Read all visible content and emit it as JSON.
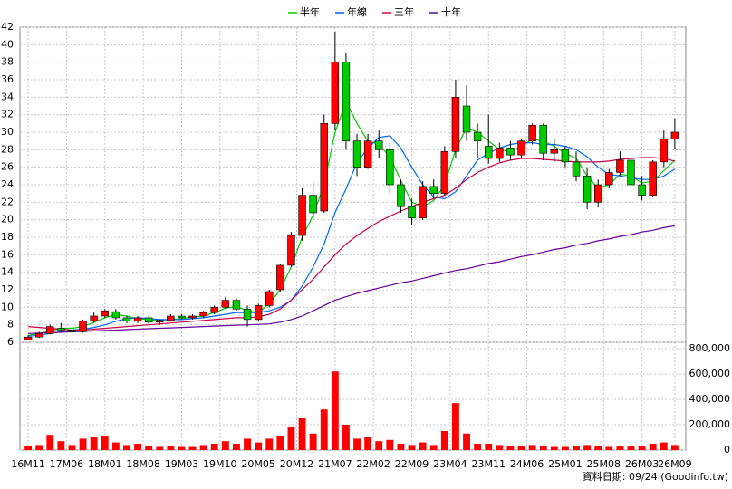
{
  "chart_data": {
    "type": "candlestick",
    "x": [
      0,
      2,
      4,
      6,
      8,
      10,
      12,
      14,
      16,
      18,
      20,
      22,
      24,
      26,
      28,
      30,
      32,
      34,
      36,
      38,
      40,
      42,
      44,
      46,
      48,
      50,
      52,
      54,
      56,
      58,
      60,
      62,
      64,
      66,
      68,
      70,
      72,
      74,
      76,
      78,
      80,
      82,
      84,
      86,
      88,
      90,
      92,
      94,
      96,
      98,
      100,
      102,
      104,
      106,
      108,
      110,
      112,
      114,
      116,
      118
    ],
    "open": [
      6.3,
      6.6,
      7.0,
      7.6,
      7.4,
      7.2,
      8.4,
      9.0,
      9.5,
      8.8,
      8.4,
      8.8,
      8.3,
      8.5,
      9.0,
      8.8,
      9.0,
      9.4,
      10.0,
      10.8,
      9.8,
      8.6,
      10.2,
      12.0,
      14.8,
      18.2,
      22.8,
      21.0,
      31.0,
      38.0,
      29.0,
      26.0,
      29.0,
      28.0,
      24.0,
      21.5,
      20.2,
      23.8,
      23.0,
      27.8,
      33.0,
      30.0,
      28.4,
      27.0,
      28.2,
      27.4,
      29.0,
      30.8,
      27.6,
      28.0,
      26.6,
      25.0,
      22.0,
      24.0,
      25.4,
      26.8,
      24.0,
      22.8,
      26.6,
      29.2
    ],
    "high": [
      6.8,
      7.2,
      8.0,
      8.2,
      7.8,
      8.6,
      9.4,
      9.8,
      9.8,
      9.0,
      9.0,
      9.0,
      8.6,
      9.2,
      9.2,
      9.2,
      9.6,
      10.2,
      11.2,
      11.0,
      10.2,
      10.4,
      12.0,
      15.0,
      18.6,
      23.6,
      24.4,
      32.0,
      41.5,
      39.0,
      29.8,
      29.8,
      30.2,
      28.8,
      24.6,
      22.4,
      24.4,
      24.6,
      28.4,
      36.0,
      35.4,
      31.0,
      32.0,
      28.8,
      29.0,
      29.2,
      31.0,
      31.0,
      29.2,
      28.4,
      27.8,
      26.0,
      24.6,
      25.8,
      27.8,
      27.0,
      25.0,
      26.8,
      30.2,
      31.6
    ],
    "low": [
      6.2,
      6.5,
      6.9,
      7.2,
      7.0,
      7.1,
      8.2,
      8.8,
      8.6,
      8.2,
      8.2,
      8.0,
      8.0,
      8.4,
      8.6,
      8.6,
      8.8,
      9.2,
      9.8,
      9.6,
      7.8,
      8.4,
      10.0,
      11.8,
      14.6,
      17.6,
      20.0,
      20.8,
      30.2,
      28.0,
      25.0,
      25.8,
      27.0,
      23.0,
      20.8,
      19.4,
      20.0,
      22.4,
      22.8,
      27.0,
      29.0,
      27.0,
      26.4,
      26.6,
      26.8,
      27.0,
      28.6,
      26.8,
      26.6,
      26.0,
      24.4,
      21.2,
      21.4,
      23.6,
      25.0,
      23.4,
      22.2,
      22.6,
      26.0,
      28.0
    ],
    "close": [
      6.6,
      7.0,
      7.8,
      7.4,
      7.2,
      8.4,
      9.0,
      9.6,
      8.8,
      8.4,
      8.8,
      8.3,
      8.5,
      9.0,
      8.8,
      9.0,
      9.4,
      10.0,
      10.8,
      9.8,
      8.6,
      10.2,
      11.8,
      14.8,
      18.2,
      22.8,
      20.8,
      31.0,
      38.0,
      29.0,
      26.0,
      29.0,
      28.0,
      24.0,
      21.5,
      20.2,
      23.8,
      23.0,
      27.8,
      34.0,
      30.0,
      29.0,
      27.0,
      28.2,
      27.4,
      29.0,
      30.8,
      27.6,
      28.0,
      26.6,
      25.0,
      22.0,
      24.0,
      25.4,
      26.8,
      24.0,
      22.8,
      26.6,
      29.2,
      30.0
    ],
    "volume": [
      30000,
      40000,
      120000,
      70000,
      40000,
      90000,
      100000,
      110000,
      60000,
      40000,
      50000,
      30000,
      25000,
      30000,
      25000,
      25000,
      40000,
      50000,
      70000,
      50000,
      90000,
      60000,
      90000,
      110000,
      180000,
      250000,
      130000,
      320000,
      620000,
      200000,
      90000,
      100000,
      70000,
      80000,
      50000,
      40000,
      60000,
      40000,
      150000,
      370000,
      130000,
      50000,
      50000,
      40000,
      30000,
      30000,
      40000,
      35000,
      25000,
      25000,
      30000,
      40000,
      35000,
      25000,
      30000,
      35000,
      30000,
      50000,
      60000,
      40000
    ],
    "up_color": "#ff0000",
    "down_color": "#00cc00",
    "volume_color": "#ff0000",
    "series": [
      {
        "name": "半年",
        "color": "#00cc00",
        "values": [
          6.8,
          7.0,
          7.3,
          7.6,
          7.6,
          7.8,
          8.3,
          8.8,
          9.2,
          9.0,
          8.7,
          8.6,
          8.5,
          8.6,
          8.7,
          8.9,
          9.0,
          9.4,
          9.9,
          10.1,
          9.6,
          9.4,
          10.4,
          12.0,
          14.6,
          18.0,
          20.5,
          24.0,
          30.0,
          33.5,
          31.0,
          29.0,
          28.6,
          27.2,
          24.5,
          22.0,
          21.5,
          22.2,
          24.0,
          28.0,
          30.5,
          30.0,
          29.0,
          28.0,
          27.8,
          28.4,
          29.2,
          29.0,
          28.4,
          27.6,
          27.0,
          25.0,
          23.6,
          24.0,
          25.2,
          25.0,
          24.2,
          24.4,
          25.6,
          26.8
        ]
      },
      {
        "name": "年線",
        "color": "#0066ff",
        "values": [
          6.7,
          6.8,
          7.0,
          7.2,
          7.4,
          7.5,
          7.7,
          8.0,
          8.4,
          8.7,
          8.8,
          8.7,
          8.6,
          8.6,
          8.6,
          8.7,
          8.8,
          9.0,
          9.2,
          9.4,
          9.4,
          9.4,
          9.6,
          10.0,
          10.8,
          12.4,
          14.6,
          17.2,
          20.8,
          23.5,
          26.5,
          28.2,
          29.4,
          29.6,
          28.2,
          26.0,
          24.0,
          22.6,
          22.4,
          23.2,
          25.0,
          26.8,
          27.6,
          28.2,
          28.6,
          28.8,
          28.8,
          28.6,
          28.6,
          28.4,
          28.0,
          27.2,
          26.0,
          25.2,
          25.0,
          24.8,
          24.6,
          24.6,
          25.0,
          25.8
        ]
      },
      {
        "name": "三年",
        "color": "#cc0044",
        "values": [
          7.8,
          7.7,
          7.6,
          7.5,
          7.4,
          7.4,
          7.5,
          7.6,
          7.7,
          7.8,
          7.9,
          8.0,
          8.1,
          8.2,
          8.3,
          8.4,
          8.5,
          8.6,
          8.7,
          8.8,
          8.8,
          8.9,
          9.2,
          9.8,
          10.8,
          12.0,
          13.2,
          14.6,
          16.0,
          17.2,
          18.2,
          19.0,
          19.8,
          20.4,
          21.0,
          21.5,
          22.0,
          22.4,
          22.8,
          23.6,
          24.6,
          25.4,
          26.0,
          26.5,
          26.8,
          27.0,
          27.0,
          26.9,
          26.8,
          26.7,
          26.6,
          26.6,
          26.6,
          26.7,
          26.9,
          27.0,
          27.1,
          27.1,
          27.0,
          26.7
        ]
      },
      {
        "name": "十年",
        "color": "#660099",
        "values": [
          7.0,
          7.05,
          7.1,
          7.15,
          7.2,
          7.25,
          7.3,
          7.35,
          7.4,
          7.45,
          7.5,
          7.55,
          7.6,
          7.65,
          7.7,
          7.75,
          7.8,
          7.85,
          7.9,
          7.95,
          8.0,
          8.05,
          8.1,
          8.3,
          8.6,
          9.0,
          9.6,
          10.2,
          10.8,
          11.2,
          11.6,
          11.9,
          12.2,
          12.5,
          12.8,
          13.0,
          13.3,
          13.6,
          13.9,
          14.2,
          14.4,
          14.7,
          15.0,
          15.2,
          15.5,
          15.8,
          16.0,
          16.3,
          16.6,
          16.8,
          17.1,
          17.3,
          17.6,
          17.8,
          18.1,
          18.3,
          18.6,
          18.8,
          19.1,
          19.3
        ]
      }
    ],
    "xlim": [
      -1.5,
      120
    ],
    "xticks": [
      {
        "value": 0,
        "label": "16M11"
      },
      {
        "value": 7,
        "label": "17M06"
      },
      {
        "value": 14,
        "label": "18M01"
      },
      {
        "value": 21,
        "label": "18M08"
      },
      {
        "value": 28,
        "label": "19M03"
      },
      {
        "value": 35,
        "label": "19M10"
      },
      {
        "value": 42,
        "label": "20M05"
      },
      {
        "value": 49,
        "label": "20M12"
      },
      {
        "value": 56,
        "label": "21M07"
      },
      {
        "value": 63,
        "label": "22M02"
      },
      {
        "value": 70,
        "label": "22M09"
      },
      {
        "value": 77,
        "label": "23M04"
      },
      {
        "value": 84,
        "label": "23M11"
      },
      {
        "value": 91,
        "label": "24M06"
      },
      {
        "value": 98,
        "label": "25M01"
      },
      {
        "value": 105,
        "label": "25M08"
      },
      {
        "value": 112,
        "label": "26M03"
      },
      {
        "value": 118,
        "label": "26M09"
      }
    ],
    "ylim": [
      6,
      42
    ],
    "yticks": [
      6,
      8,
      10,
      12,
      14,
      16,
      18,
      20,
      22,
      24,
      26,
      28,
      30,
      32,
      34,
      36,
      38,
      40,
      42
    ],
    "y2lim": [
      0,
      850000
    ],
    "y2ticks": [
      0,
      {
        "value": 200000,
        "label": "200,000"
      },
      {
        "value": 400000,
        "label": "400,000"
      },
      {
        "value": 600000,
        "label": "600,000"
      },
      {
        "value": 800000,
        "label": "800,000"
      }
    ],
    "grid": true,
    "legend_position": "top",
    "footnote": "資料日期: 09/24 (Goodinfo.tw)"
  }
}
